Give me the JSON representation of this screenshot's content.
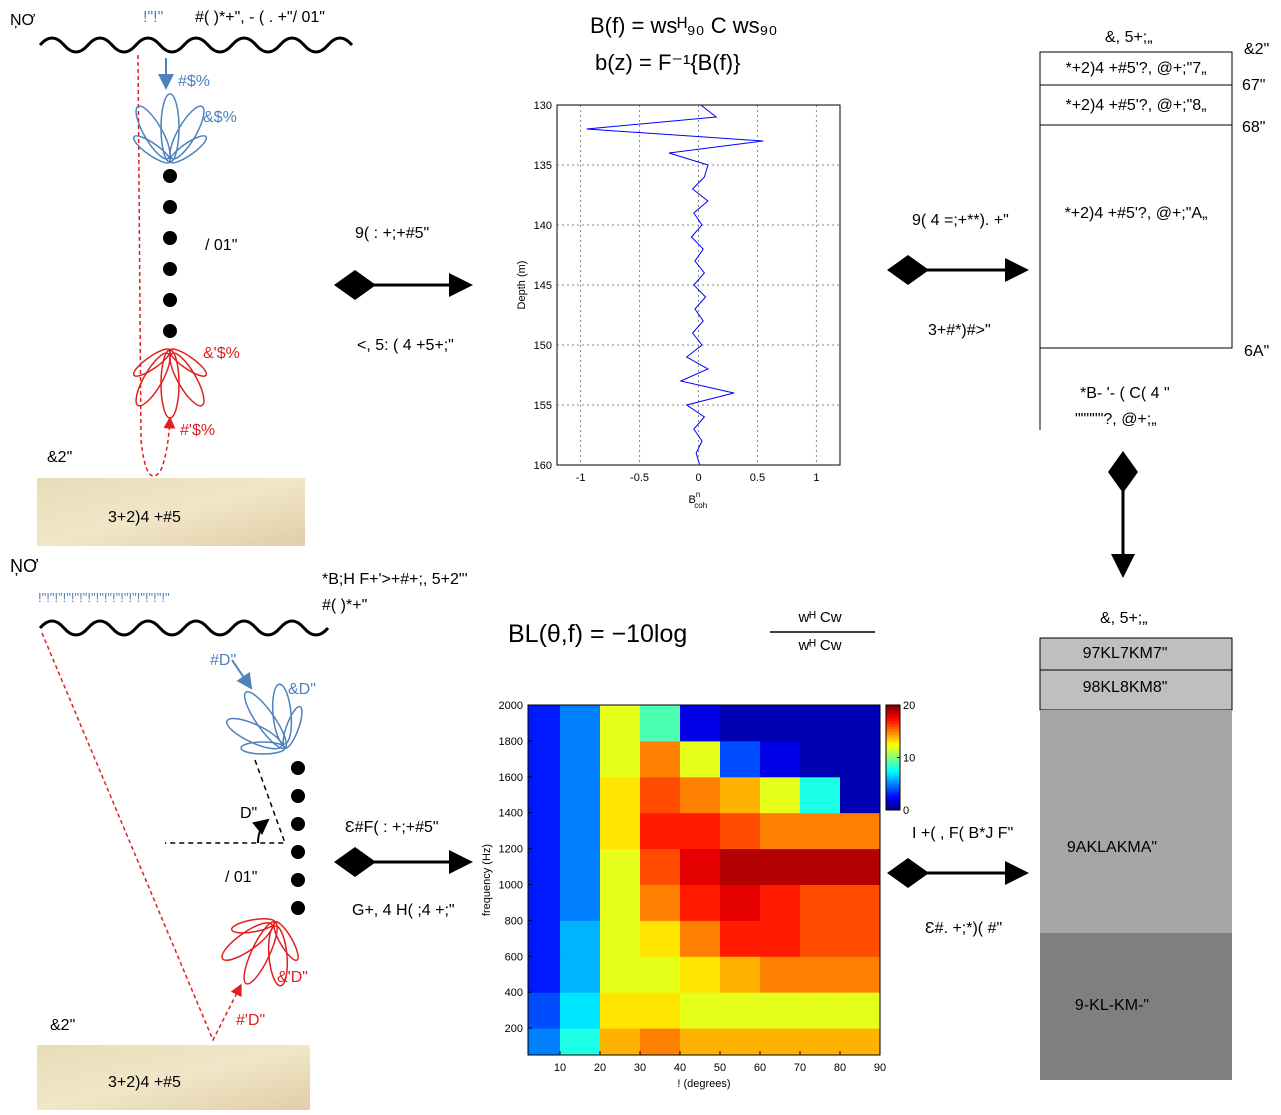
{
  "top": {
    "left": {
      "corner": "ŅƠ",
      "surface_blue": "!\"!\"",
      "surface_text": "#( )*+\", - ( . +\"/ 01\"",
      "down_label": "#$%",
      "beam_up": "&$%",
      "array": "/ 01\"",
      "beam_down": "&'$%",
      "up_label": "#'$%",
      "seabed_label": "&2\"",
      "sand": "3+2)4 +#5"
    },
    "arrow_left": {
      "above": "9( : +;+#5\"",
      "below": "<, 5: ( 4 +5+;\""
    },
    "equations": [
      "B(f)   = wsᴴ₉₀ C ws₉₀",
      "b(z)   = F⁻¹{B(f)}"
    ],
    "arrow_right": {
      "above": "9( 4 =;+**). +\"",
      "below": "3+#*)#>\""
    },
    "model": {
      "title": "&, 5+;„",
      "layers": [
        "*+2)4 +#5'?, @+;\"7„",
        "*+2)4 +#5'?, @+;\"8„",
        "*+2)4 +#5'?, @+;\"A„"
      ],
      "side": [
        "&2\"",
        "67\"",
        "68\"",
        "6A\""
      ],
      "note": [
        "*B- '- ( C( 4 \"",
        "\"\"\"\"\"?, @+;„"
      ]
    }
  },
  "bottom": {
    "left": {
      "corner": "ŅƠ",
      "surface_blue": "!\"!\"!\"!\"!\"!\"!\"!\"!\"!\"!\"!\"!\"!\"!\"!\"",
      "note1": "*B;H F+'>+#+;, 5+2\"'",
      "note2": "#( )*+\"",
      "down_label": "#D\"",
      "beam_up": "&D\"",
      "angle": "D\"",
      "array": "/ 01\"",
      "beam_down": "&'D\"",
      "up_label": "#'D\"",
      "seabed_label": "&2\"",
      "sand": "3+2)4 +#5"
    },
    "arrow_left": {
      "above": "Ɛ#F( : +;+#5\"",
      "below": "G+, 4 H( ;4 +;\""
    },
    "equation": {
      "lhs": "BL(θ,f)   = −10log",
      "num": "wᴴ Cw",
      "den": "wᴴ Cw"
    },
    "arrow_right": {
      "above": "I +( , F( B*J F\"",
      "below": "Ɛ#. +;*)( #\""
    },
    "model": {
      "title": "&, 5+;„",
      "layers": [
        "97KL7KM7\"",
        "98KL8KM8\"",
        "9AKLAKMA\"",
        "9-KL-KM-\""
      ]
    }
  },
  "chart_data": [
    {
      "type": "line",
      "ylabel": "Depth (m)",
      "xlabel": "B",
      "xlabel_sup": "n",
      "xlabel_sub": "coh",
      "color": "#0000ff",
      "grid": true,
      "depth": [
        130,
        131,
        132,
        133,
        134,
        135,
        136,
        137,
        138,
        139,
        140,
        141,
        142,
        143,
        144,
        145,
        146,
        147,
        148,
        149,
        150,
        151,
        152,
        153,
        154,
        155,
        156,
        157,
        158,
        159,
        160
      ],
      "values": [
        0.02,
        0.15,
        -0.95,
        0.55,
        -0.25,
        0.08,
        0.05,
        -0.05,
        0.08,
        -0.04,
        0.03,
        -0.06,
        0.04,
        -0.03,
        0.05,
        -0.04,
        0.06,
        -0.03,
        0.04,
        -0.05,
        0.03,
        -0.1,
        0.08,
        -0.15,
        0.3,
        -0.1,
        0.05,
        -0.04,
        0.03,
        -0.02,
        0.01
      ],
      "xlim": [
        -1.2,
        1.2
      ],
      "xticks": [
        -1,
        -0.5,
        0,
        0.5,
        1
      ],
      "ylim": [
        130,
        160
      ],
      "yticks": [
        130,
        135,
        140,
        145,
        150,
        155,
        160
      ]
    },
    {
      "type": "heatmap",
      "xlabel": "! (degrees)",
      "ylabel": "frequency (Hz)",
      "colormap": "jet",
      "x_edges": [
        2,
        10,
        20,
        30,
        40,
        50,
        60,
        70,
        80,
        90
      ],
      "y_edges": [
        50,
        200,
        400,
        600,
        800,
        1000,
        1200,
        1400,
        1600,
        1800,
        2000
      ],
      "values": [
        [
          5,
          8,
          14,
          15,
          14,
          14,
          14,
          14,
          14
        ],
        [
          4,
          7,
          13,
          13,
          12,
          12,
          12,
          12,
          12
        ],
        [
          3,
          6,
          12,
          12,
          13,
          14,
          15,
          15,
          15
        ],
        [
          3,
          6,
          12,
          13,
          15,
          17,
          17,
          16,
          16
        ],
        [
          3,
          5,
          12,
          15,
          17,
          18,
          17,
          16,
          16
        ],
        [
          3,
          5,
          12,
          16,
          18,
          19,
          19,
          19,
          19
        ],
        [
          3,
          5,
          13,
          17,
          17,
          16,
          15,
          15,
          15
        ],
        [
          3,
          5,
          13,
          16,
          15,
          14,
          12,
          8,
          1
        ],
        [
          3,
          5,
          12,
          15,
          12,
          4,
          2,
          1,
          1
        ],
        [
          3,
          5,
          12,
          9,
          2,
          1,
          1,
          1,
          1
        ]
      ],
      "clim": [
        0,
        20
      ],
      "cticks": [
        0,
        10,
        20
      ],
      "xlim": [
        2,
        90
      ],
      "xticks": [
        10,
        20,
        30,
        40,
        50,
        60,
        70,
        80,
        90
      ],
      "ylim": [
        50,
        2000
      ],
      "yticks": [
        200,
        400,
        600,
        800,
        1000,
        1200,
        1400,
        1600,
        1800,
        2000
      ]
    }
  ]
}
